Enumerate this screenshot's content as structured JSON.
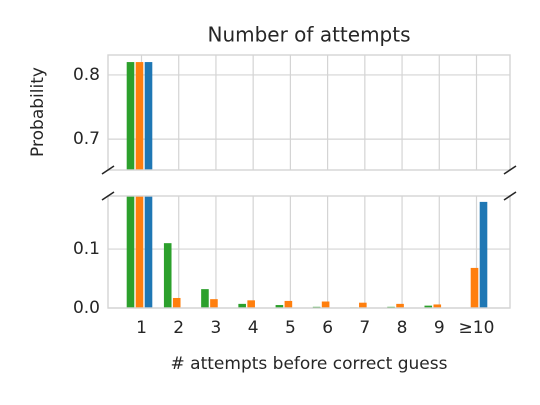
{
  "chart_data": {
    "type": "bar",
    "title": "Number of attempts",
    "xlabel": "# attempts before correct guess",
    "ylabel": "Probability",
    "categories": [
      "1",
      "2",
      "3",
      "4",
      "5",
      "6",
      "7",
      "8",
      "9",
      "≥10"
    ],
    "series": [
      {
        "color": "#2ca02c",
        "values": [
          0.82,
          0.11,
          0.032,
          0.007,
          0.005,
          0.002,
          0.001,
          0.002,
          0.004,
          0
        ]
      },
      {
        "color": "#ff7f0e",
        "values": [
          0.82,
          0.017,
          0.015,
          0.013,
          0.012,
          0.011,
          0.009,
          0.007,
          0.006,
          0.068
        ]
      },
      {
        "color": "#1f77b4",
        "values": [
          0.82,
          0,
          0,
          0,
          0,
          0,
          0,
          0,
          0,
          0.18
        ]
      }
    ],
    "ylim_upper": [
      0.652,
      0.831
    ],
    "yticks_upper": [
      0.7,
      0.8
    ],
    "ylim": [
      0,
      0.19
    ],
    "yticks": [
      {
        "value": 0,
        "label": "0.0"
      },
      0.1
    ],
    "grid": true
  }
}
